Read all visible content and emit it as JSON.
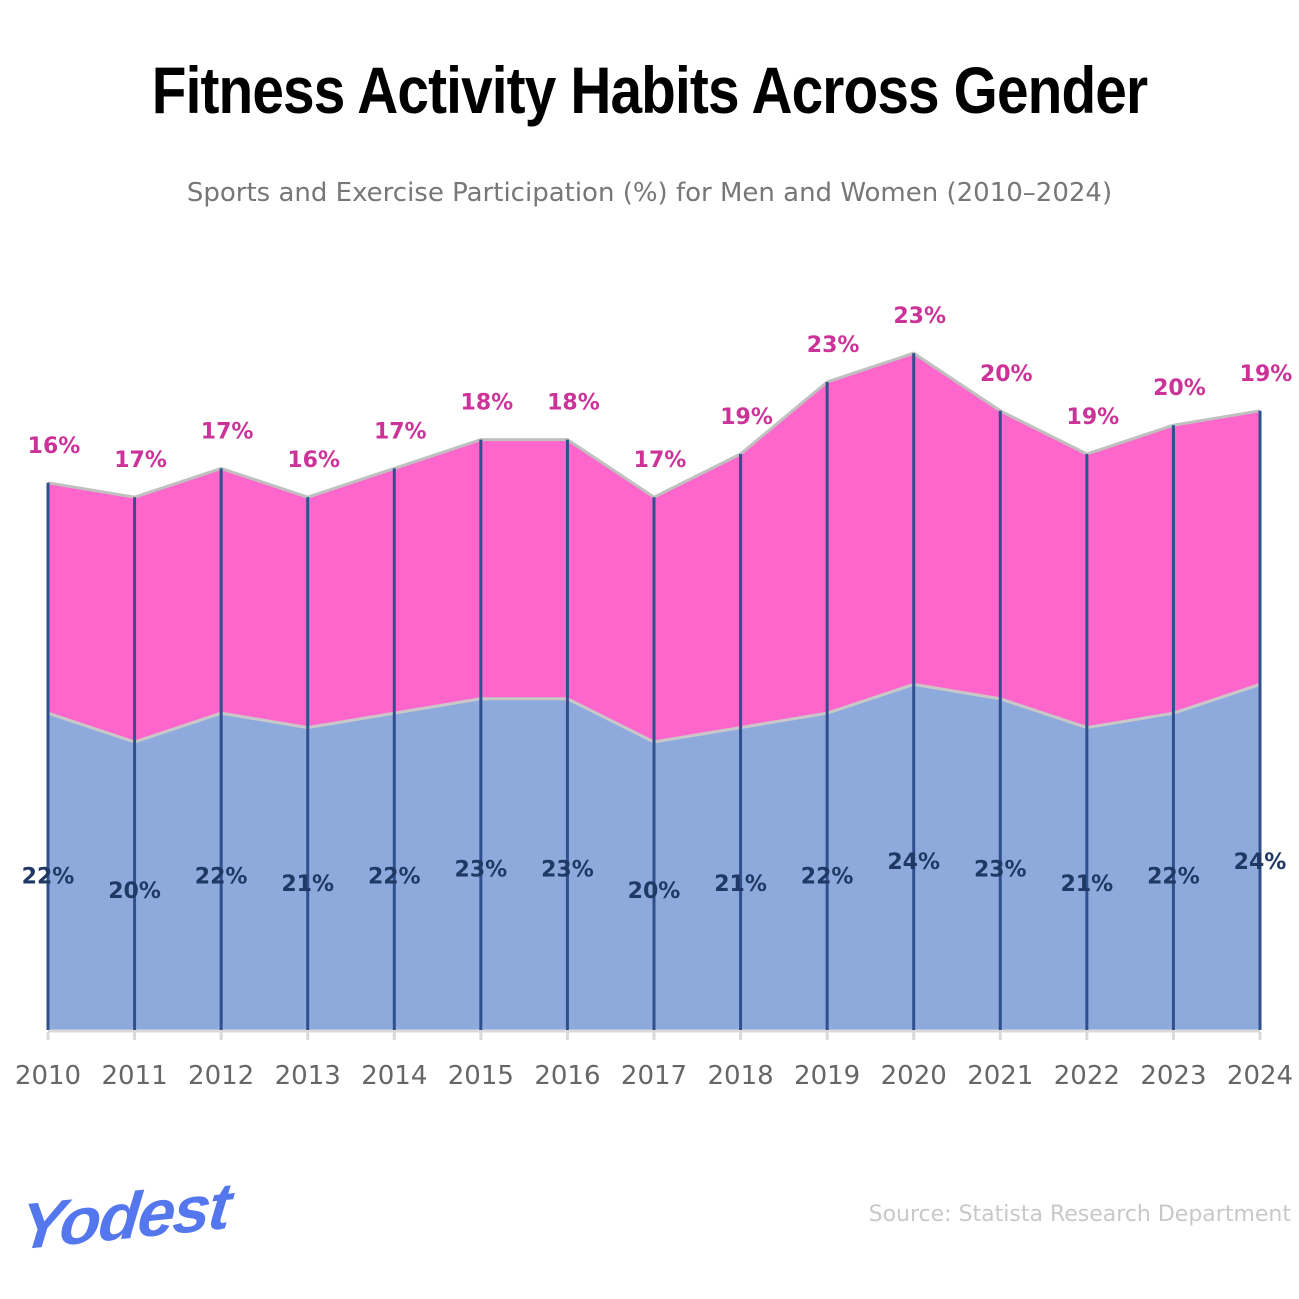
{
  "chart_data": {
    "type": "area",
    "stacked": true,
    "title": "Fitness Activity Habits Across Gender",
    "subtitle": "Sports and Exercise Participation (%) for Men and Women (2010–2024)",
    "categories": [
      "2010",
      "2011",
      "2012",
      "2013",
      "2014",
      "2015",
      "2016",
      "2017",
      "2018",
      "2019",
      "2020",
      "2021",
      "2022",
      "2023",
      "2024"
    ],
    "series": [
      {
        "values": [
          22,
          20,
          22,
          21,
          22,
          23,
          23,
          20,
          21,
          22,
          24,
          23,
          21,
          22,
          24
        ],
        "color": "#8eaadc",
        "label_color": "#1f3864"
      },
      {
        "values": [
          16,
          17,
          17,
          16,
          17,
          18,
          18,
          17,
          19,
          23,
          23,
          20,
          19,
          20,
          19
        ],
        "color": "#ff66cc",
        "label_color": "#cc3399"
      }
    ],
    "value_suffix": "%",
    "grid": false,
    "legend": "none"
  },
  "source": "Source: Statista Research Department",
  "logo": "Yodest"
}
